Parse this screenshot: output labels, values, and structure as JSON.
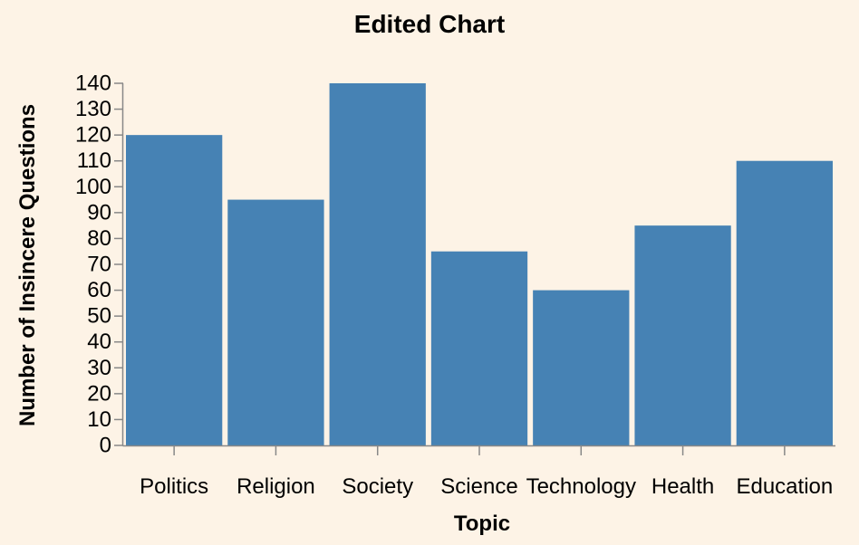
{
  "chart_data": {
    "type": "bar",
    "title": "Edited Chart",
    "xlabel": "Topic",
    "ylabel": "Number of Insincere Questions",
    "categories": [
      "Politics",
      "Religion",
      "Society",
      "Science",
      "Technology",
      "Health",
      "Education"
    ],
    "values": [
      120,
      95,
      140,
      75,
      60,
      85,
      110
    ],
    "ylim": [
      0,
      140
    ],
    "yticks": [
      0,
      10,
      20,
      30,
      40,
      50,
      60,
      70,
      80,
      90,
      100,
      110,
      120,
      130,
      140
    ],
    "grid": false,
    "legend": "none"
  },
  "colors": {
    "background": "#fdf3e6",
    "bar": "#4682b4",
    "axis": "#888888",
    "text": "#000000"
  }
}
